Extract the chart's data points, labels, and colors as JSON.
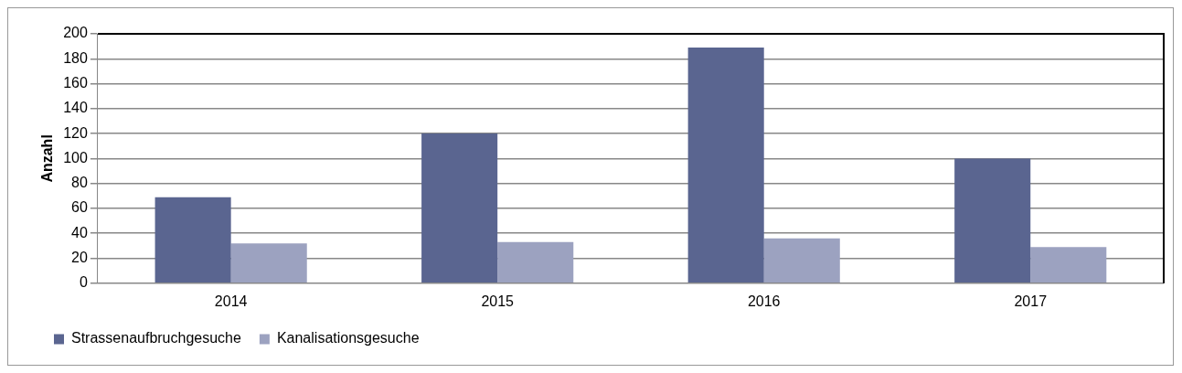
{
  "chart_data": {
    "type": "bar",
    "ylabel": "Anzahl",
    "categories": [
      "2014",
      "2015",
      "2016",
      "2017"
    ],
    "series": [
      {
        "name": "Strassenaufbruchgesuche",
        "color": "#5a6590",
        "values": [
          69,
          120,
          189,
          100
        ]
      },
      {
        "name": "Kanalisationsgesuche",
        "color": "#9ca2c0",
        "values": [
          32,
          33,
          36,
          29
        ]
      }
    ],
    "ylim": [
      0,
      200
    ],
    "yticks": [
      0,
      20,
      40,
      60,
      80,
      100,
      120,
      140,
      160,
      180,
      200
    ],
    "grid": "y",
    "legend": "bottom"
  }
}
